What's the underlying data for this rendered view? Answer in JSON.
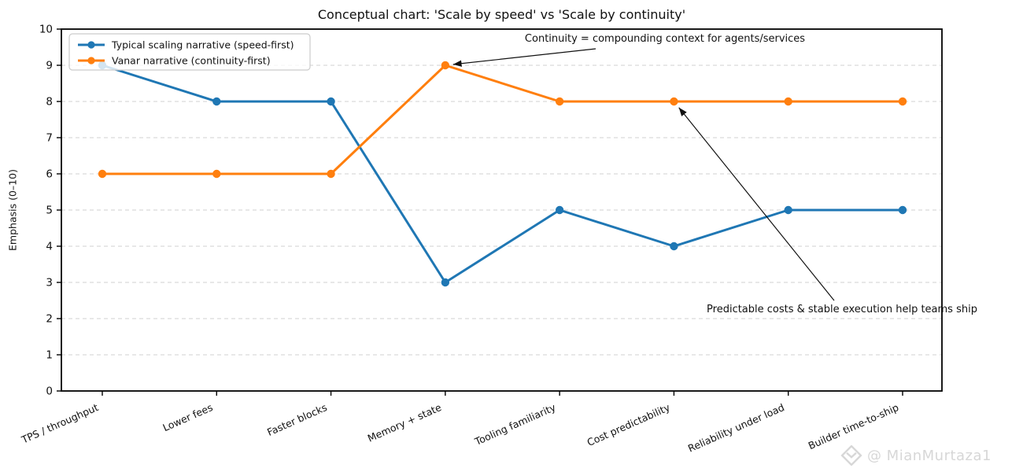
{
  "title": "Conceptual chart: 'Scale by speed' vs 'Scale by continuity'",
  "watermark": {
    "icon": "vanar-diamond-logo",
    "handle": "@ MianMurtaza1"
  },
  "chart_data": {
    "type": "line",
    "title": "Conceptual chart: 'Scale by speed' vs 'Scale by continuity'",
    "xlabel": "",
    "ylabel": "Emphasis (0–10)",
    "ylim": [
      0,
      10
    ],
    "yticks": [
      0,
      1,
      2,
      3,
      4,
      5,
      6,
      7,
      8,
      9,
      10
    ],
    "grid": "horizontal dashed",
    "legend_position": "upper left",
    "categories": [
      "TPS / throughput",
      "Lower fees",
      "Faster blocks",
      "Memory + state",
      "Tooling familiarity",
      "Cost predictability",
      "Reliability under load",
      "Builder time-to-ship"
    ],
    "series": [
      {
        "name": "Typical scaling narrative (speed-first)",
        "color": "#1f77b4",
        "values": [
          9,
          8,
          8,
          3,
          5,
          4,
          5,
          5
        ]
      },
      {
        "name": "Vanar narrative (continuity-first)",
        "color": "#ff7f0e",
        "values": [
          6,
          6,
          6,
          9,
          8,
          8,
          8,
          8
        ]
      }
    ],
    "annotations": [
      {
        "text": "Continuity = compounding context for agents/services",
        "target_series_index": 1,
        "target_point_index": 3,
        "target_value": 9
      },
      {
        "text": "Predictable costs & stable execution help teams ship",
        "target_series_index": 1,
        "target_point_index": 5,
        "target_value": 8
      }
    ]
  }
}
